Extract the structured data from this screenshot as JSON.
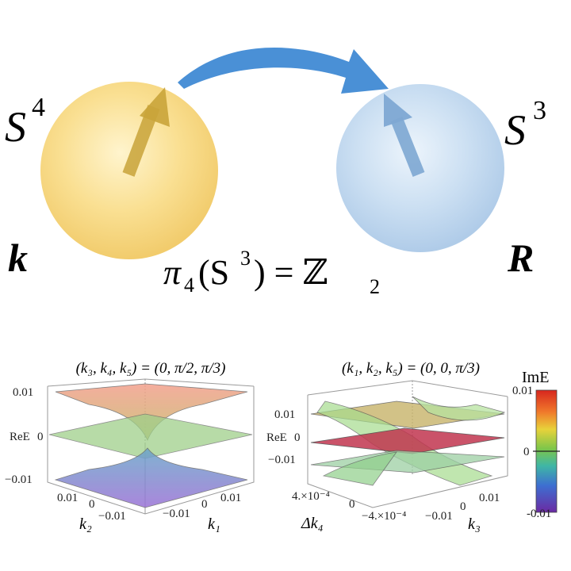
{
  "top": {
    "left_sphere_label": "S",
    "left_sphere_sup": "4",
    "right_sphere_label": "S",
    "right_sphere_sup": "3",
    "left_vector_label": "k",
    "right_vector_label": "R",
    "homotopy_pi": "π",
    "homotopy_sub": "4",
    "homotopy_arg_open": "(S",
    "homotopy_arg_sup": "3",
    "homotopy_arg_close": ") = ℤ",
    "homotopy_result_sub": "2",
    "colors": {
      "left_sphere": "#f7d774",
      "right_sphere": "#b8d3ee",
      "arrow": "#4a90d6",
      "vector": "#c9a43a"
    }
  },
  "panel_left": {
    "title": "(k₃, k₄, k₅) = (0, π/2, π/3)",
    "z_label": "ReE",
    "z_ticks": [
      "0.01",
      "0",
      "−0.01"
    ],
    "x1_ticks": [
      "0.01",
      "0",
      "−0.01"
    ],
    "x1_label": "k₂",
    "x2_ticks": [
      "−0.01",
      "0",
      "0.01"
    ],
    "x2_label": "k₁"
  },
  "panel_right": {
    "title": "(k₁, k₂, k₅) = (0, 0, π/3)",
    "z_label": "ReE",
    "z_ticks": [
      "0.01",
      "0",
      "−0.01"
    ],
    "x1_ticks": [
      "4.×10⁻⁴",
      "0",
      "−4.×10⁻⁴"
    ],
    "x1_label": "Δk₄",
    "x2_ticks": [
      "−0.01",
      "0",
      "0.01"
    ],
    "x2_label": "k₃"
  },
  "colorbar": {
    "title": "ImE",
    "ticks": [
      "0.01",
      "0",
      "-0.01"
    ]
  }
}
